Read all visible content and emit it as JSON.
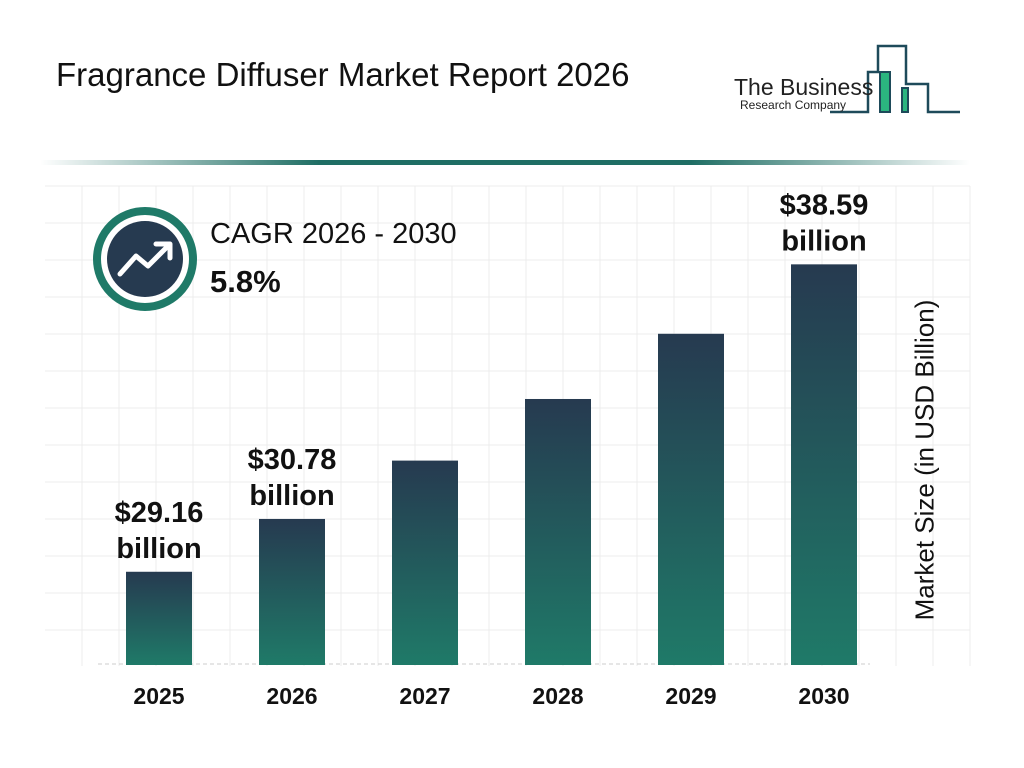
{
  "header": {
    "title": "Fragrance Diffuser Market Report 2026"
  },
  "logo": {
    "line1": "The Business",
    "line2": "Research Company"
  },
  "cagr": {
    "label": "CAGR 2026 - 2030",
    "value": "5.8%",
    "icon": "trending-up-icon"
  },
  "colors": {
    "bar_top": "#263a50",
    "bar_bottom": "#1f7a68",
    "accent": "#1f6e64",
    "logo_green": "#2bb57f"
  },
  "chart_data": {
    "type": "bar",
    "title": "",
    "xlabel": "",
    "ylabel": "Market Size (in USD Billion)",
    "categories": [
      "2025",
      "2026",
      "2027",
      "2028",
      "2029",
      "2030"
    ],
    "values": [
      29.16,
      30.78,
      32.57,
      34.46,
      36.46,
      38.59
    ],
    "data_labels": [
      {
        "index": 0,
        "line1": "$29.16",
        "line2": "billion"
      },
      {
        "index": 1,
        "line1": "$30.78",
        "line2": "billion"
      },
      {
        "index": 5,
        "line1": "$38.59",
        "line2": "billion"
      }
    ],
    "grid": true,
    "legend": "none"
  }
}
